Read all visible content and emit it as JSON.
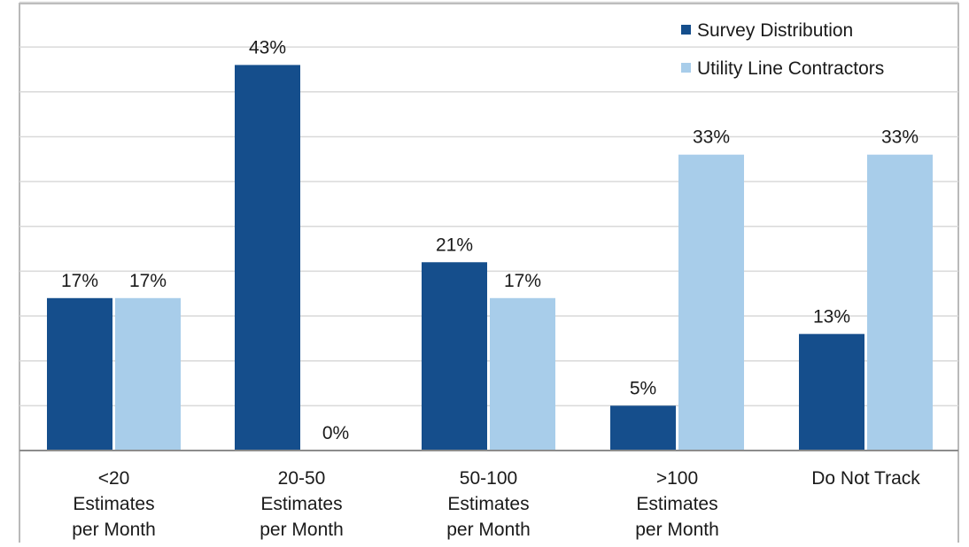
{
  "chart_data": {
    "type": "bar",
    "categories": [
      [
        "<20",
        "Estimates",
        "per Month"
      ],
      [
        "20-50",
        "Estimates",
        "per Month"
      ],
      [
        "50-100",
        "Estimates",
        "per Month"
      ],
      [
        ">100",
        "Estimates",
        "per Month"
      ],
      [
        "Do Not Track"
      ]
    ],
    "series": [
      {
        "name": "Survey Distribution",
        "color": "#154e8c",
        "values": [
          17,
          43,
          21,
          5,
          13
        ],
        "labels": [
          "17%",
          "43%",
          "21%",
          "5%",
          "13%"
        ]
      },
      {
        "name": "Utility Line Contractors",
        "color": "#a8cdea",
        "values": [
          17,
          0,
          17,
          33,
          33
        ],
        "labels": [
          "17%",
          "0%",
          "17%",
          "33%",
          "33%"
        ]
      }
    ],
    "title": "",
    "xlabel": "",
    "ylabel": "",
    "ylim": [
      0,
      50
    ],
    "grid": true,
    "legend_position": "top-right"
  }
}
